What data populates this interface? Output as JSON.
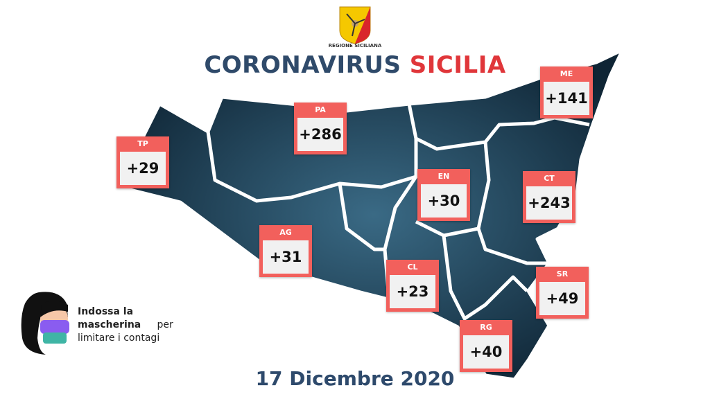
{
  "header": {
    "logo_text": "REGIONE SICILIANA",
    "title_part1": "CORONAVIRUS",
    "title_part2": "SICILIA"
  },
  "provinces": [
    {
      "code": "TP",
      "value": "+29"
    },
    {
      "code": "PA",
      "value": "+286"
    },
    {
      "code": "ME",
      "value": "+141"
    },
    {
      "code": "EN",
      "value": "+30"
    },
    {
      "code": "CT",
      "value": "+243"
    },
    {
      "code": "AG",
      "value": "+31"
    },
    {
      "code": "CL",
      "value": "+23"
    },
    {
      "code": "SR",
      "value": "+49"
    },
    {
      "code": "RG",
      "value": "+40"
    }
  ],
  "message": {
    "bold": "Indossa la mascherina",
    "rest1": "per",
    "rest2": "limitare i contagi"
  },
  "date": "17 Dicembre 2020",
  "colors": {
    "title_blue": "#2f4a6a",
    "title_red": "#e0363a",
    "box_red": "#f2605c",
    "map": "#1f3d55"
  }
}
